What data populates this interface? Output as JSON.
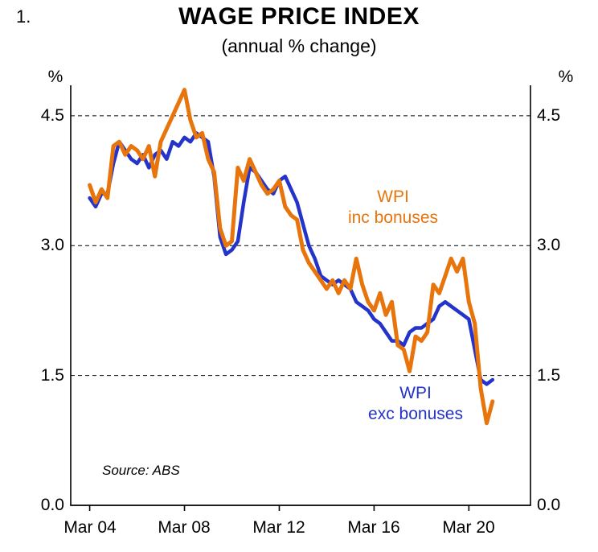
{
  "figure_number": "1.",
  "title": "WAGE PRICE INDEX",
  "subtitle": "(annual % change)",
  "source": "Source: ABS",
  "colors": {
    "inc_bonuses": "#E8740C",
    "exc_bonuses": "#2433C9"
  },
  "axis": {
    "unit_left": "%",
    "unit_right": "%",
    "y_ticks_left": [
      "4.5",
      "3.0",
      "1.5",
      "0.0"
    ],
    "y_ticks_right": [
      "4.5",
      "3.0",
      "1.5",
      "0.0"
    ],
    "x_ticks": [
      "Mar 04",
      "Mar 08",
      "Mar 12",
      "Mar 16",
      "Mar 20"
    ]
  },
  "annotations": {
    "inc_line1": "WPI",
    "inc_line2": "inc bonuses",
    "exc_line1": "WPI",
    "exc_line2": "exc bonuses"
  },
  "chart_data": {
    "type": "line",
    "title": "WAGE PRICE INDEX (annual % change)",
    "xlabel": "",
    "ylabel": "%",
    "x_start_year": 2004,
    "x_step_years": 0.25,
    "x_tick_years": [
      2004,
      2008,
      2012,
      2016,
      2020
    ],
    "x_tick_labels": [
      "Mar 04",
      "Mar 08",
      "Mar 12",
      "Mar 16",
      "Mar 20"
    ],
    "x_range": [
      2003.2,
      2022.6
    ],
    "ylim": [
      0,
      4.815
    ],
    "gridlines": [
      1.5,
      3.0,
      4.5
    ],
    "grid_style": "dashed",
    "legend_position": "annotations-on-plot",
    "series": [
      {
        "name": "WPI inc bonuses",
        "color": "#E8740C",
        "stroke_width": 5,
        "values": [
          3.7,
          3.5,
          3.65,
          3.55,
          4.15,
          4.2,
          4.05,
          4.15,
          4.1,
          4.0,
          4.15,
          3.8,
          4.2,
          4.35,
          4.5,
          4.65,
          4.8,
          4.45,
          4.25,
          4.3,
          4.0,
          3.85,
          3.2,
          3.0,
          3.05,
          3.9,
          3.75,
          4.0,
          3.85,
          3.7,
          3.6,
          3.65,
          3.75,
          3.45,
          3.35,
          3.3,
          2.95,
          2.8,
          2.7,
          2.6,
          2.5,
          2.6,
          2.45,
          2.6,
          2.5,
          2.85,
          2.55,
          2.35,
          2.25,
          2.45,
          2.2,
          2.35,
          1.85,
          1.8,
          1.55,
          1.95,
          1.9,
          2.0,
          2.55,
          2.45,
          2.65,
          2.85,
          2.7,
          2.85,
          2.35,
          2.1,
          1.35,
          0.95,
          1.2
        ]
      },
      {
        "name": "WPI exc bonuses",
        "color": "#2433C9",
        "stroke_width": 4.5,
        "values": [
          3.55,
          3.45,
          3.6,
          3.6,
          3.95,
          4.2,
          4.1,
          4.0,
          3.95,
          4.05,
          3.9,
          4.05,
          4.1,
          4.0,
          4.2,
          4.15,
          4.25,
          4.2,
          4.3,
          4.25,
          4.2,
          3.8,
          3.1,
          2.9,
          2.95,
          3.05,
          3.5,
          3.9,
          3.85,
          3.75,
          3.65,
          3.6,
          3.75,
          3.8,
          3.65,
          3.5,
          3.25,
          3.0,
          2.85,
          2.65,
          2.6,
          2.55,
          2.6,
          2.55,
          2.5,
          2.35,
          2.3,
          2.25,
          2.15,
          2.1,
          2.0,
          1.9,
          1.9,
          1.85,
          2.0,
          2.05,
          2.05,
          2.1,
          2.15,
          2.3,
          2.35,
          2.3,
          2.25,
          2.2,
          2.15,
          1.8,
          1.45,
          1.4,
          1.45
        ]
      }
    ]
  }
}
